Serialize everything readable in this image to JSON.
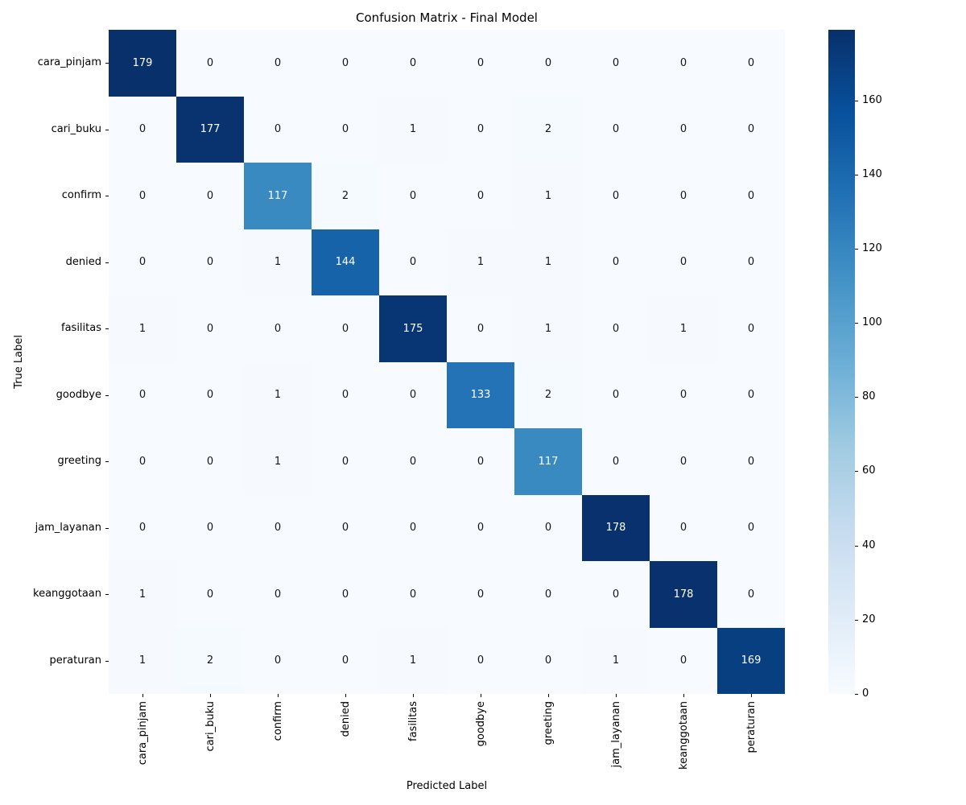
{
  "chart_data": {
    "type": "heatmap",
    "title": "Confusion Matrix - Final Model",
    "xlabel": "Predicted Label",
    "ylabel": "True Label",
    "labels": [
      "cara_pinjam",
      "cari_buku",
      "confirm",
      "denied",
      "fasilitas",
      "goodbye",
      "greeting",
      "jam_layanan",
      "keanggotaan",
      "peraturan"
    ],
    "matrix": [
      [
        179,
        0,
        0,
        0,
        0,
        0,
        0,
        0,
        0,
        0
      ],
      [
        0,
        177,
        0,
        0,
        1,
        0,
        2,
        0,
        0,
        0
      ],
      [
        0,
        0,
        117,
        2,
        0,
        0,
        1,
        0,
        0,
        0
      ],
      [
        0,
        0,
        1,
        144,
        0,
        1,
        1,
        0,
        0,
        0
      ],
      [
        1,
        0,
        0,
        0,
        175,
        0,
        1,
        0,
        1,
        0
      ],
      [
        0,
        0,
        1,
        0,
        0,
        133,
        2,
        0,
        0,
        0
      ],
      [
        0,
        0,
        1,
        0,
        0,
        0,
        117,
        0,
        0,
        0
      ],
      [
        0,
        0,
        0,
        0,
        0,
        0,
        0,
        178,
        0,
        0
      ],
      [
        1,
        0,
        0,
        0,
        0,
        0,
        0,
        0,
        178,
        0
      ],
      [
        1,
        2,
        0,
        0,
        1,
        0,
        0,
        1,
        0,
        169
      ]
    ],
    "vmin": 0,
    "vmax": 179,
    "colormap": "Blues",
    "colormap_stops": [
      "#f7fbff",
      "#deebf7",
      "#c6dbef",
      "#9ecae1",
      "#6baed6",
      "#4292c6",
      "#2171b5",
      "#08519c",
      "#08306b"
    ],
    "colorbar_ticks": [
      0,
      20,
      40,
      60,
      80,
      100,
      120,
      140,
      160
    ],
    "legend_position": "right-colorbar",
    "grid": false
  }
}
